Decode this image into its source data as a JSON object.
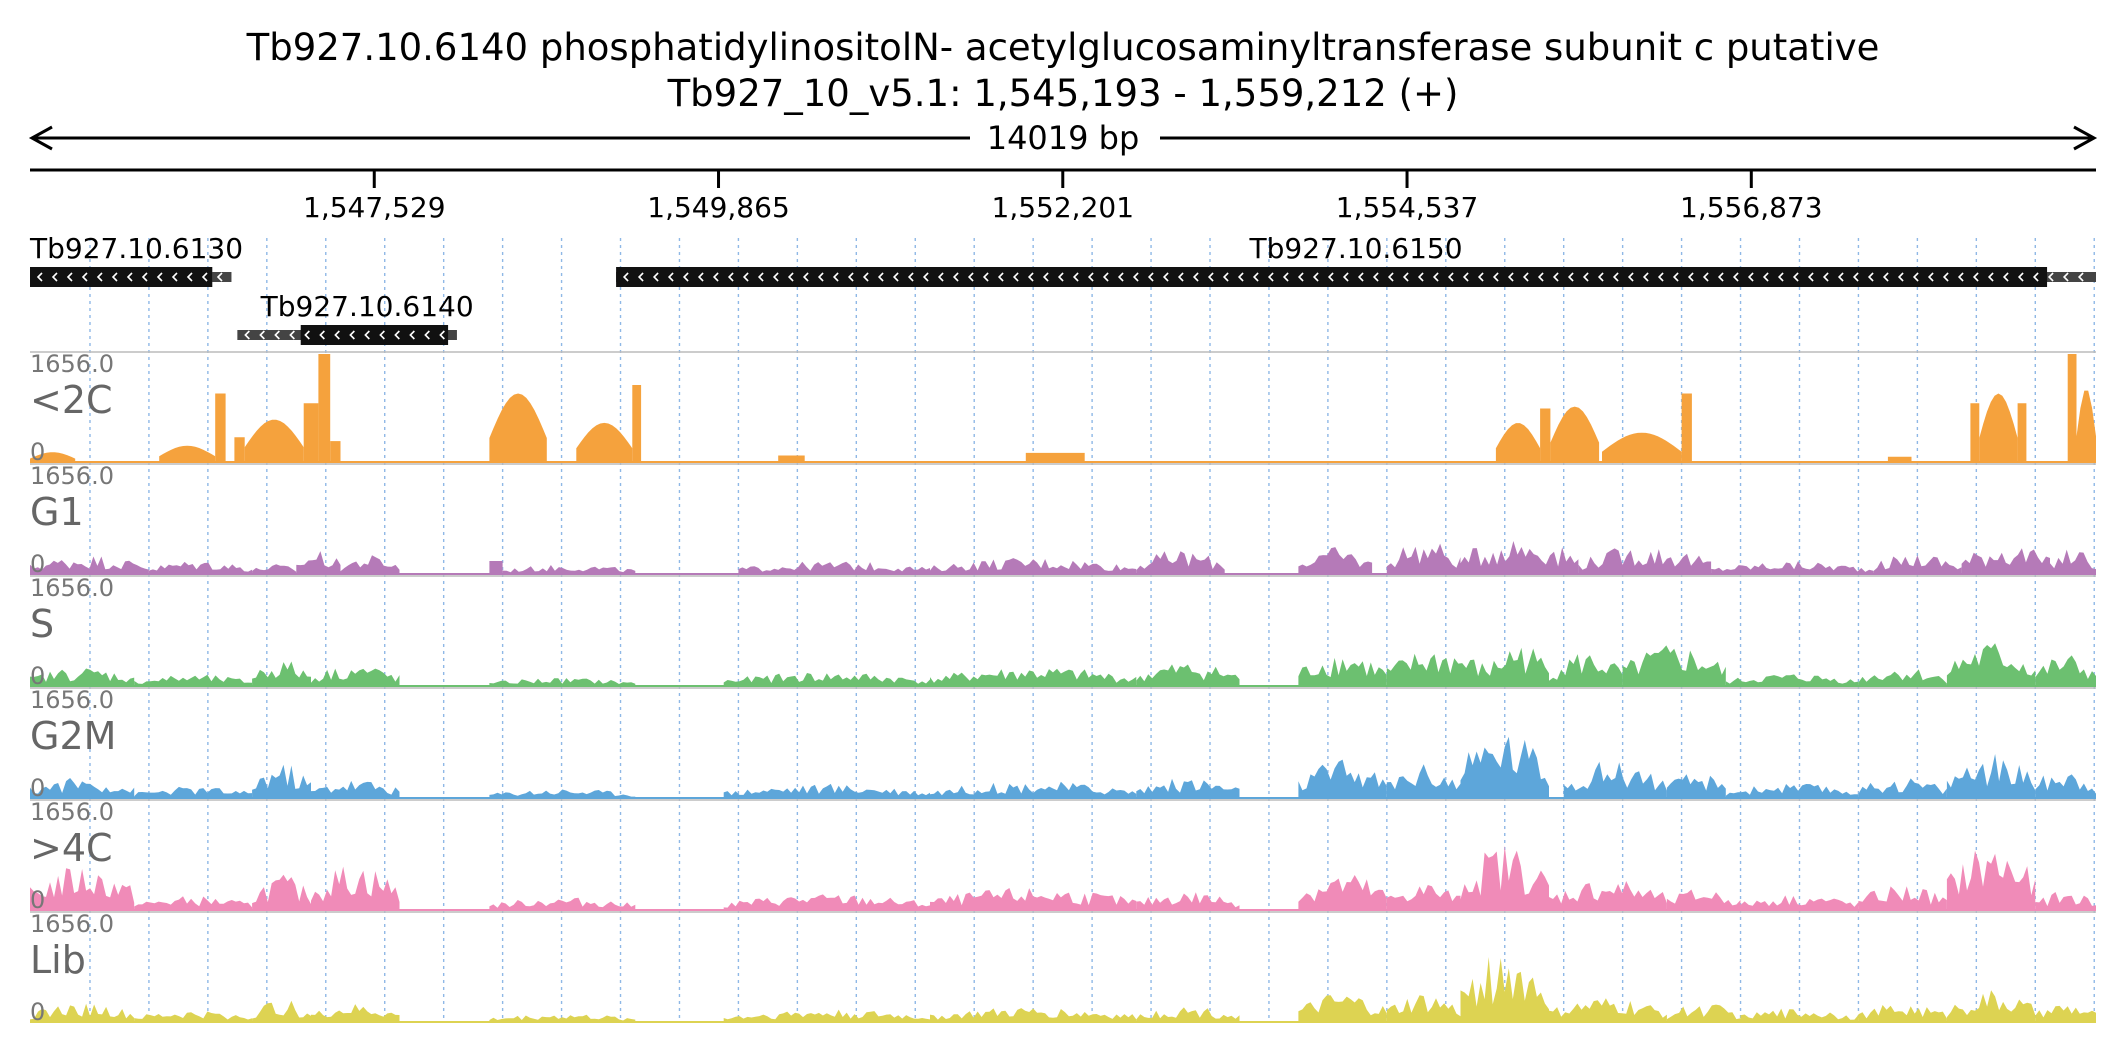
{
  "header": {
    "gene_title": "Tb927.10.6140  phosphatidylinositolN- acetylglucosaminyltransferase subunit c  putative",
    "locus": "Tb927_10_v5.1: 1,545,193 - 1,559,212 (+)",
    "span_label": "14019 bp"
  },
  "chart_data": {
    "type": "area",
    "description_free": true,
    "genome": {
      "chromosome": "Tb927_10_v5.1",
      "start": 1545193,
      "end": 1559212,
      "strand": "+",
      "length_bp": 14019
    },
    "axis": {
      "ticks": [
        {
          "pos": 1547529,
          "label": "1,547,529"
        },
        {
          "pos": 1549865,
          "label": "1,549,865"
        },
        {
          "pos": 1552201,
          "label": "1,552,201"
        },
        {
          "pos": 1554537,
          "label": "1,554,537"
        },
        {
          "pos": 1556873,
          "label": "1,556,873"
        }
      ],
      "grid_every_bp": 400,
      "grid": true
    },
    "genes": [
      {
        "name": "Tb927.10.6130",
        "start": 1545193,
        "end": 1546430,
        "cds_start": 1545193,
        "cds_end": 1546430,
        "utr5_end": 1546560,
        "strand": "-",
        "row": 0
      },
      {
        "name": "Tb927.10.6140",
        "start": 1546600,
        "end": 1548090,
        "cds_start": 1547030,
        "cds_end": 1548030,
        "strand": "-",
        "row": 1
      },
      {
        "name": "Tb927.10.6150",
        "start": 1549170,
        "end": 1559212,
        "cds_start": 1549170,
        "cds_end": 1558880,
        "strand": "-",
        "row": 0
      }
    ],
    "y_max": 1656.0,
    "y_max_label": "1656.0",
    "y_min_label": "0",
    "tracks": [
      {
        "name": "<2C",
        "color": "#F5A23D",
        "segments": [
          [
            1545193,
            1545500,
            150,
            "hump"
          ],
          [
            1546070,
            1546450,
            250,
            "hump"
          ],
          [
            1546450,
            1546520,
            1050,
            "flat"
          ],
          [
            1546580,
            1546650,
            380,
            "flat"
          ],
          [
            1546650,
            1547050,
            650,
            "hump"
          ],
          [
            1547050,
            1547150,
            900,
            "flat"
          ],
          [
            1547150,
            1547230,
            1656,
            "flat"
          ],
          [
            1547230,
            1547300,
            320,
            "flat"
          ],
          [
            1548310,
            1548700,
            1050,
            "hump"
          ],
          [
            1548900,
            1549280,
            600,
            "hump"
          ],
          [
            1549280,
            1549340,
            1180,
            "flat"
          ],
          [
            1550270,
            1550450,
            100,
            "flat"
          ],
          [
            1551950,
            1552350,
            140,
            "flat"
          ],
          [
            1555140,
            1555440,
            600,
            "hump"
          ],
          [
            1555440,
            1555510,
            820,
            "flat"
          ],
          [
            1555510,
            1555840,
            850,
            "hump"
          ],
          [
            1555860,
            1556400,
            450,
            "hump"
          ],
          [
            1556400,
            1556470,
            1050,
            "flat"
          ],
          [
            1557800,
            1557960,
            80,
            "flat"
          ],
          [
            1558360,
            1558420,
            900,
            "flat"
          ],
          [
            1558420,
            1558680,
            1050,
            "hump"
          ],
          [
            1558680,
            1558740,
            900,
            "flat"
          ],
          [
            1559020,
            1559080,
            1656,
            "flat"
          ],
          [
            1559080,
            1559500,
            1130,
            "hump"
          ],
          [
            1559500,
            1559560,
            1656,
            "flat"
          ]
        ]
      },
      {
        "name": "G1",
        "color": "#B57AB8",
        "segments": [
          [
            1545193,
            1546000,
            300,
            "noise"
          ],
          [
            1546000,
            1546700,
            220,
            "noise"
          ],
          [
            1546700,
            1547000,
            160,
            "noise"
          ],
          [
            1547000,
            1547300,
            380,
            "noise"
          ],
          [
            1547300,
            1547700,
            300,
            "noise"
          ],
          [
            1548310,
            1548400,
            200,
            "flat"
          ],
          [
            1548400,
            1549300,
            150,
            "noise"
          ],
          [
            1550000,
            1551300,
            200,
            "noise"
          ],
          [
            1551300,
            1552700,
            260,
            "noise"
          ],
          [
            1552700,
            1553300,
            380,
            "noise"
          ],
          [
            1553800,
            1554300,
            420,
            "noise"
          ],
          [
            1554400,
            1554900,
            550,
            "noise"
          ],
          [
            1554900,
            1555700,
            600,
            "noise"
          ],
          [
            1555700,
            1556600,
            450,
            "noise"
          ],
          [
            1556600,
            1557700,
            200,
            "noise"
          ],
          [
            1557700,
            1558300,
            330,
            "noise"
          ],
          [
            1558300,
            1558900,
            500,
            "noise"
          ],
          [
            1558900,
            1559212,
            420,
            "noise"
          ],
          [
            1559212,
            1559560,
            330,
            "noise"
          ]
        ]
      },
      {
        "name": "S",
        "color": "#6CC070",
        "segments": [
          [
            1545193,
            1545900,
            300,
            "noise"
          ],
          [
            1545900,
            1546700,
            180,
            "noise"
          ],
          [
            1546700,
            1547100,
            420,
            "noise"
          ],
          [
            1547100,
            1547700,
            350,
            "noise"
          ],
          [
            1548310,
            1549300,
            130,
            "noise"
          ],
          [
            1549900,
            1551300,
            220,
            "noise"
          ],
          [
            1551300,
            1552700,
            300,
            "noise"
          ],
          [
            1552700,
            1553400,
            380,
            "noise"
          ],
          [
            1553800,
            1554400,
            550,
            "noise"
          ],
          [
            1554400,
            1555100,
            600,
            "noise"
          ],
          [
            1555100,
            1555500,
            700,
            "noise"
          ],
          [
            1555500,
            1556000,
            550,
            "noise"
          ],
          [
            1556000,
            1556700,
            650,
            "noise"
          ],
          [
            1556700,
            1557600,
            200,
            "noise"
          ],
          [
            1557600,
            1558200,
            300,
            "noise"
          ],
          [
            1558200,
            1558800,
            700,
            "noise"
          ],
          [
            1558800,
            1559560,
            500,
            "noise"
          ]
        ]
      },
      {
        "name": "G2M",
        "color": "#5DA6DA",
        "segments": [
          [
            1545193,
            1545900,
            330,
            "noise"
          ],
          [
            1545900,
            1546700,
            180,
            "noise"
          ],
          [
            1546700,
            1547100,
            550,
            "noise"
          ],
          [
            1547100,
            1547700,
            300,
            "noise"
          ],
          [
            1548310,
            1549300,
            150,
            "noise"
          ],
          [
            1549900,
            1551300,
            220,
            "noise"
          ],
          [
            1551300,
            1552700,
            260,
            "noise"
          ],
          [
            1552700,
            1553400,
            320,
            "noise"
          ],
          [
            1553800,
            1554400,
            600,
            "noise"
          ],
          [
            1554400,
            1554900,
            550,
            "noise"
          ],
          [
            1554900,
            1555500,
            1100,
            "noise"
          ],
          [
            1555600,
            1556300,
            600,
            "noise"
          ],
          [
            1556300,
            1556700,
            400,
            "noise"
          ],
          [
            1556700,
            1557600,
            230,
            "noise"
          ],
          [
            1557600,
            1558200,
            330,
            "noise"
          ],
          [
            1558200,
            1558800,
            700,
            "noise"
          ],
          [
            1558800,
            1559560,
            500,
            "noise"
          ]
        ]
      },
      {
        "name": ">4C",
        "color": "#F08BB8",
        "segments": [
          [
            1545193,
            1545900,
            700,
            "noise"
          ],
          [
            1545900,
            1546700,
            220,
            "noise"
          ],
          [
            1546700,
            1547100,
            550,
            "noise"
          ],
          [
            1547100,
            1547700,
            750,
            "noise"
          ],
          [
            1548310,
            1549300,
            200,
            "noise"
          ],
          [
            1549900,
            1551300,
            250,
            "noise"
          ],
          [
            1551300,
            1552700,
            350,
            "noise"
          ],
          [
            1552700,
            1553400,
            300,
            "noise"
          ],
          [
            1553800,
            1554400,
            600,
            "noise"
          ],
          [
            1554400,
            1554900,
            450,
            "noise"
          ],
          [
            1554900,
            1555500,
            1050,
            "noise"
          ],
          [
            1555500,
            1556300,
            500,
            "noise"
          ],
          [
            1556300,
            1556800,
            350,
            "noise"
          ],
          [
            1556800,
            1557600,
            250,
            "noise"
          ],
          [
            1557600,
            1558200,
            400,
            "noise"
          ],
          [
            1558200,
            1558800,
            1050,
            "noise"
          ],
          [
            1558800,
            1559560,
            300,
            "noise"
          ]
        ]
      },
      {
        "name": "Lib",
        "color": "#DDD352",
        "segments": [
          [
            1545193,
            1545900,
            300,
            "noise"
          ],
          [
            1545900,
            1546700,
            180,
            "noise"
          ],
          [
            1546700,
            1547100,
            350,
            "noise"
          ],
          [
            1547100,
            1547700,
            280,
            "noise"
          ],
          [
            1548310,
            1549300,
            130,
            "noise"
          ],
          [
            1549900,
            1551300,
            200,
            "noise"
          ],
          [
            1551300,
            1552700,
            230,
            "noise"
          ],
          [
            1552700,
            1553400,
            250,
            "noise"
          ],
          [
            1553800,
            1554400,
            450,
            "noise"
          ],
          [
            1554400,
            1554900,
            450,
            "noise"
          ],
          [
            1554900,
            1555500,
            1100,
            "noise"
          ],
          [
            1555500,
            1556300,
            380,
            "noise"
          ],
          [
            1556300,
            1556800,
            300,
            "noise"
          ],
          [
            1556800,
            1557600,
            220,
            "noise"
          ],
          [
            1557600,
            1558200,
            300,
            "noise"
          ],
          [
            1558200,
            1558800,
            500,
            "noise"
          ],
          [
            1558800,
            1559560,
            300,
            "noise"
          ]
        ]
      }
    ]
  }
}
